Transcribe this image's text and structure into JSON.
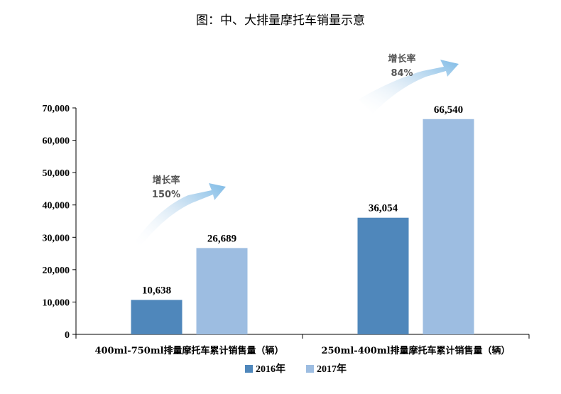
{
  "chart_data": {
    "type": "bar",
    "title": "图：中、大排量摩托车销量示意",
    "categories": [
      "400ml-750ml排量摩托车累计销售量（辆）",
      "250ml-400ml排量摩托车累计销售量（辆）"
    ],
    "series": [
      {
        "name": "2016年",
        "values": [
          10638,
          36054
        ],
        "labels": [
          "10,638",
          "36,054"
        ],
        "color": "#4f87bb"
      },
      {
        "name": "2017年",
        "values": [
          26689,
          66540
        ],
        "labels": [
          "26,689",
          "66,540"
        ],
        "color": "#9dbde1"
      }
    ],
    "ylim": [
      0,
      70000
    ],
    "yticks": [
      0,
      10000,
      20000,
      30000,
      40000,
      50000,
      60000,
      70000
    ],
    "ytick_labels": [
      "0",
      "10,000",
      "20,000",
      "30,000",
      "40,000",
      "50,000",
      "60,000",
      "70,000"
    ],
    "grid": false,
    "legend_position": "bottom",
    "annotations": [
      {
        "category": 0,
        "line1": "增长率",
        "line2": "150%"
      },
      {
        "category": 1,
        "line1": "增长率",
        "line2": "84%"
      }
    ]
  }
}
